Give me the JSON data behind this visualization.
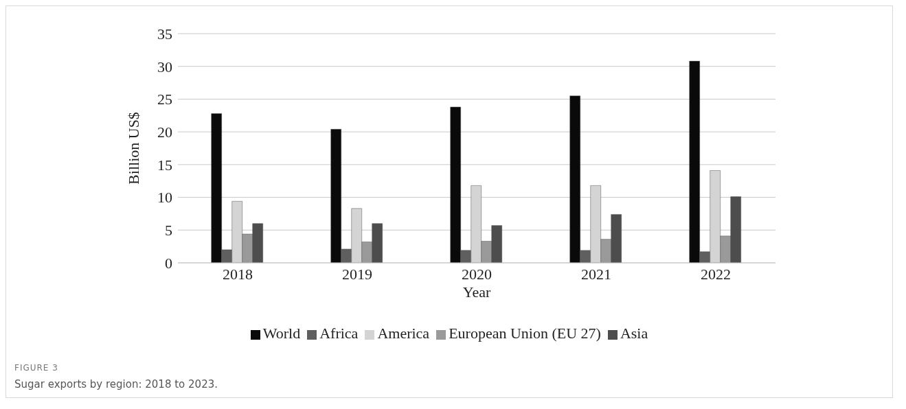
{
  "chart_data": {
    "type": "bar",
    "xlabel": "Year",
    "ylabel": "Billion US$",
    "categories": [
      "2018",
      "2019",
      "2020",
      "2021",
      "2022"
    ],
    "series": [
      {
        "name": "World",
        "color": "#0a0a0a",
        "values": [
          22.8,
          20.4,
          23.8,
          25.5,
          30.8
        ]
      },
      {
        "name": "Africa",
        "color": "#5f5f5f",
        "values": [
          2.0,
          2.1,
          1.9,
          1.9,
          1.7
        ]
      },
      {
        "name": "America",
        "color": "#d4d4d4",
        "values": [
          9.4,
          8.3,
          11.8,
          11.8,
          14.1
        ]
      },
      {
        "name": "European Union (EU 27)",
        "color": "#9a9a9a",
        "values": [
          4.4,
          3.2,
          3.3,
          3.6,
          4.1
        ]
      },
      {
        "name": "Asia",
        "color": "#4d4d4d",
        "values": [
          6.0,
          6.0,
          5.7,
          7.4,
          10.1
        ]
      }
    ],
    "ylim": [
      0,
      35
    ],
    "yticks": [
      0,
      5,
      10,
      15,
      20,
      25,
      30,
      35
    ],
    "grid": "y",
    "legend": "bottom",
    "annotations": [
      "FIGURE 3",
      "Sugar exports by region: 2018 to 2023."
    ]
  }
}
